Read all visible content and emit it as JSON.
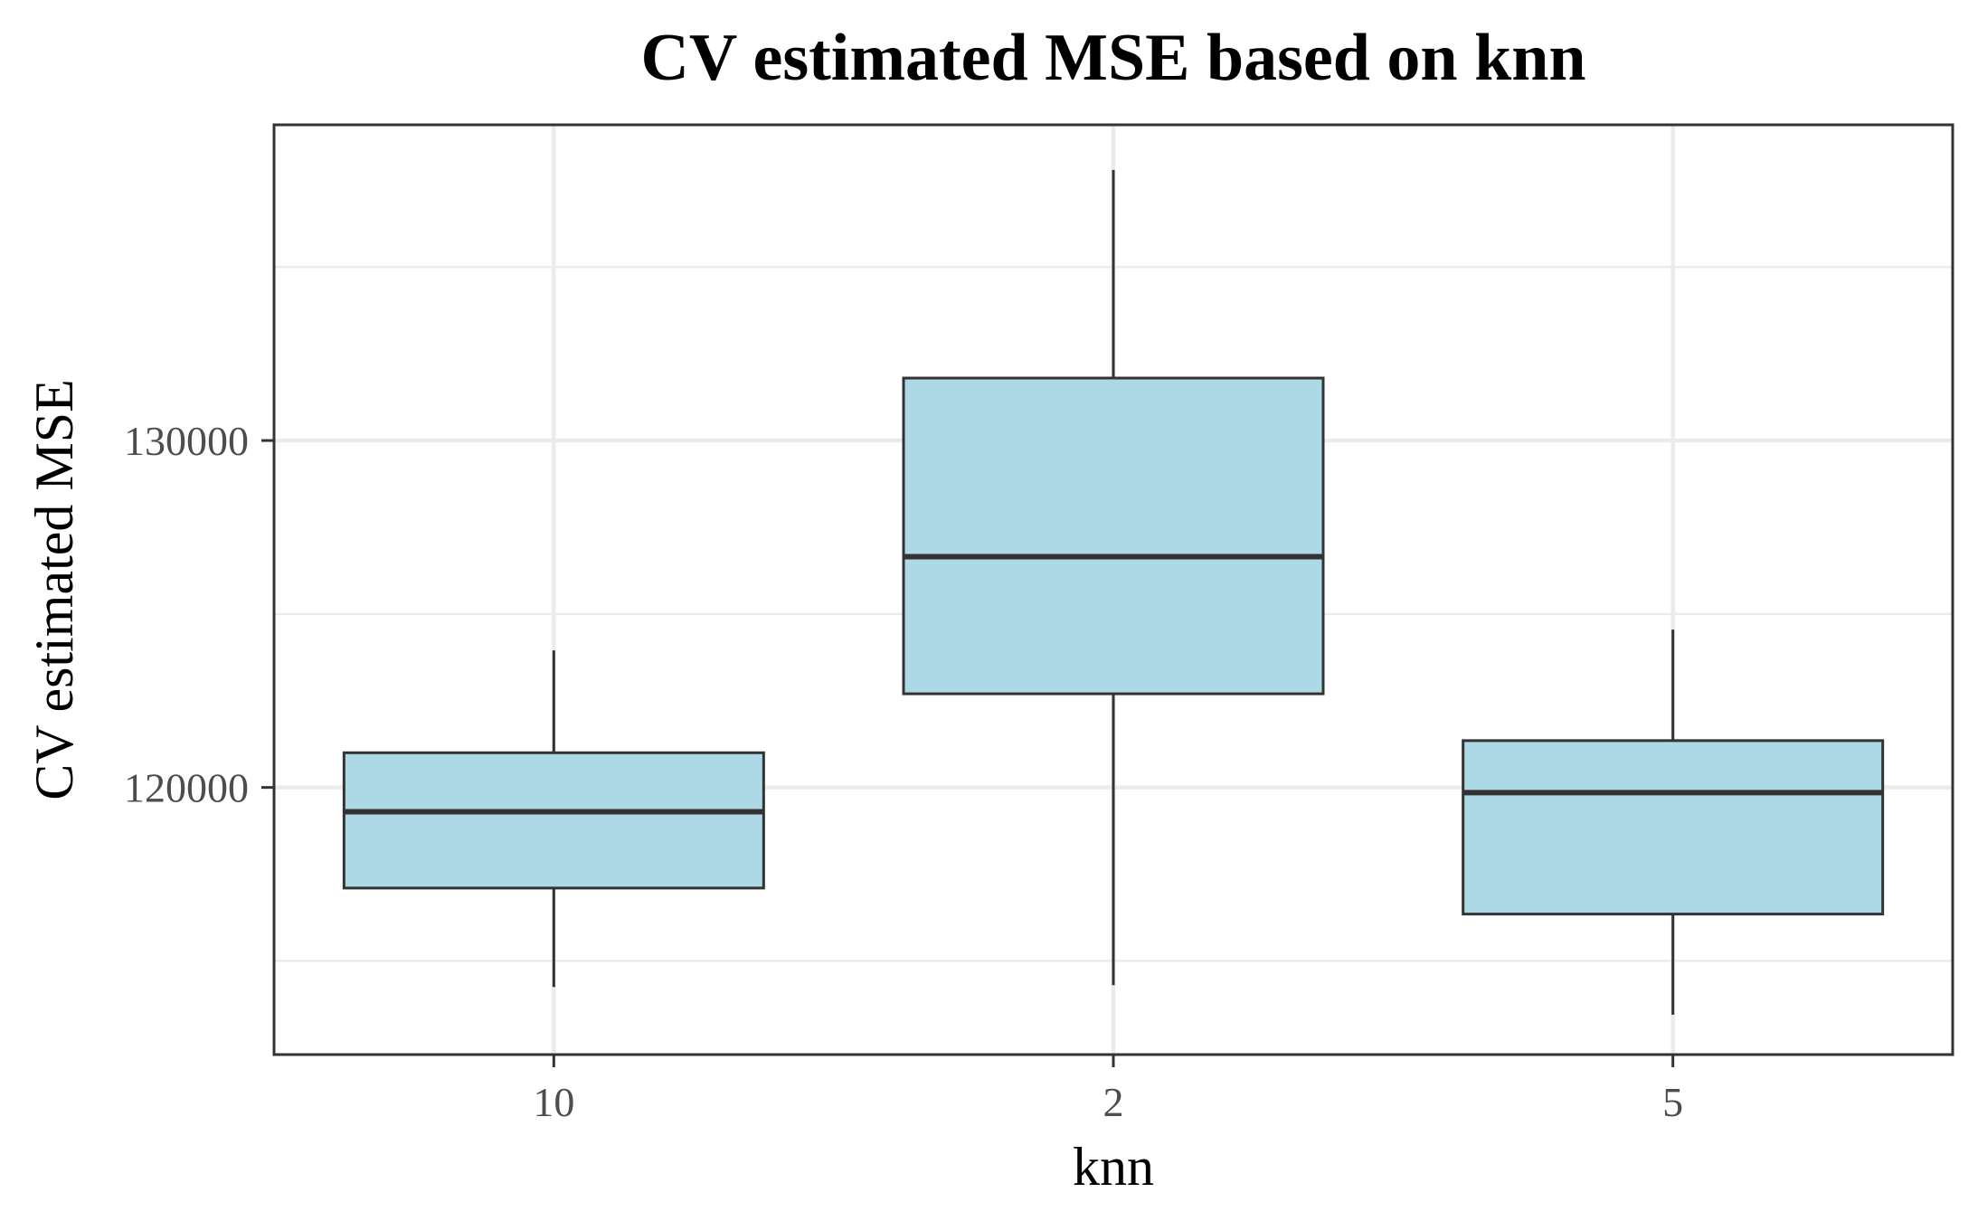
{
  "chart_data": {
    "type": "boxplot",
    "title": "CV estimated MSE based on knn",
    "xlabel": "knn",
    "ylabel": "CV estimated MSE",
    "categories": [
      "10",
      "2",
      "5"
    ],
    "boxes": [
      {
        "category": "10",
        "whisker_low": 114250,
        "q1": 117100,
        "median": 119300,
        "q3": 121000,
        "whisker_high": 123950
      },
      {
        "category": "2",
        "whisker_low": 114300,
        "q1": 122700,
        "median": 126650,
        "q3": 131800,
        "whisker_high": 137800
      },
      {
        "category": "5",
        "whisker_low": 113450,
        "q1": 116350,
        "median": 119850,
        "q3": 121350,
        "whisker_high": 124550
      }
    ],
    "y_ticks": [
      120000,
      130000
    ],
    "y_tick_labels": [
      "120000",
      "130000"
    ],
    "ylim": [
      112300,
      139100
    ],
    "grid": true,
    "box_fill": "#add8e6",
    "box_stroke": "#333333",
    "grid_color": "#ebebeb"
  }
}
